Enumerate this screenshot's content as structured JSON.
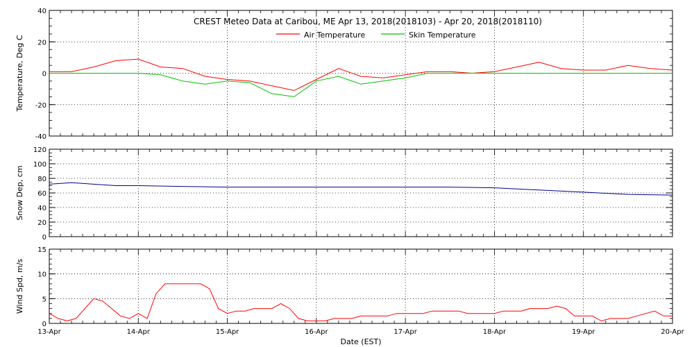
{
  "chart_data": [
    {
      "type": "line",
      "title": "CREST Meteo Data at Caribou, ME   Apr 13, 2018(2018103) - Apr 20, 2018(2018110)",
      "ylabel": "Temperature, Deg C",
      "ylim": [
        -40,
        40
      ],
      "yticks": [
        -40,
        -20,
        0,
        20,
        40
      ],
      "xlim": [
        "13-Apr",
        "20-Apr"
      ],
      "grid": true,
      "legend": "top-center",
      "series": [
        {
          "name": "Air Temperature",
          "color": "#ff0000",
          "x": [
            0,
            0.25,
            0.5,
            0.75,
            1,
            1.25,
            1.5,
            1.75,
            2,
            2.25,
            2.5,
            2.75,
            3,
            3.25,
            3.5,
            3.75,
            4,
            4.25,
            4.5,
            4.75,
            5,
            5.25,
            5.5,
            5.75,
            6,
            6.25,
            6.5,
            6.75,
            7
          ],
          "values": [
            1,
            1,
            4,
            8,
            9,
            4,
            3,
            -2,
            -4,
            -5,
            -8,
            -11,
            -4,
            3,
            -2,
            -3,
            -1,
            1,
            1,
            0,
            1,
            4,
            7,
            3,
            2,
            2,
            5,
            3,
            2
          ]
        },
        {
          "name": "Skin Temperature",
          "color": "#00c000",
          "x": [
            0,
            0.25,
            0.5,
            0.75,
            1,
            1.25,
            1.5,
            1.75,
            2,
            2.25,
            2.5,
            2.75,
            3,
            3.25,
            3.5,
            3.75,
            4,
            4.25,
            4.5,
            4.75,
            5,
            5.25,
            5.5,
            5.75,
            6,
            6.25,
            6.5,
            6.75,
            7
          ],
          "values": [
            0,
            0,
            0,
            0,
            0,
            -1,
            -5,
            -7,
            -5,
            -6,
            -13,
            -15,
            -5,
            -2,
            -7,
            -5,
            -3,
            0,
            0,
            0,
            0,
            0,
            0,
            0,
            0,
            0,
            0,
            0,
            0
          ]
        }
      ]
    },
    {
      "type": "line",
      "ylabel": "Snow Dep, cm",
      "ylim": [
        0,
        120
      ],
      "yticks": [
        0,
        20,
        40,
        60,
        80,
        100,
        120
      ],
      "xlim": [
        "13-Apr",
        "20-Apr"
      ],
      "grid": true,
      "series": [
        {
          "color": "#00008b",
          "x": [
            0,
            0.25,
            0.5,
            0.75,
            1,
            1.5,
            2,
            2.5,
            3,
            3.5,
            4,
            4.5,
            5,
            5.5,
            6,
            6.5,
            7
          ],
          "values": [
            72,
            74,
            72,
            70,
            70,
            69,
            68,
            68,
            68,
            68,
            68,
            68,
            67,
            64,
            61,
            58,
            57
          ]
        }
      ]
    },
    {
      "type": "line",
      "ylabel": "Wind Spd, m/s",
      "xlabel": "Date (EST)",
      "ylim": [
        0,
        15
      ],
      "yticks": [
        0,
        5,
        10,
        15
      ],
      "xlim": [
        "13-Apr",
        "20-Apr"
      ],
      "xticks": [
        "13-Apr",
        "14-Apr",
        "15-Apr",
        "16-Apr",
        "17-Apr",
        "18-Apr",
        "19-Apr",
        "20-Apr"
      ],
      "grid": true,
      "series": [
        {
          "color": "#ff0000",
          "x": [
            0,
            0.1,
            0.2,
            0.3,
            0.4,
            0.5,
            0.6,
            0.7,
            0.8,
            0.9,
            1.0,
            1.1,
            1.2,
            1.3,
            1.4,
            1.5,
            1.6,
            1.7,
            1.8,
            1.9,
            2.0,
            2.1,
            2.2,
            2.3,
            2.4,
            2.5,
            2.6,
            2.7,
            2.8,
            2.9,
            3.0,
            3.1,
            3.2,
            3.3,
            3.4,
            3.5,
            3.6,
            3.7,
            3.8,
            3.9,
            4.0,
            4.1,
            4.2,
            4.3,
            4.4,
            4.5,
            4.6,
            4.7,
            4.8,
            4.9,
            5.0,
            5.1,
            5.2,
            5.3,
            5.4,
            5.5,
            5.6,
            5.7,
            5.8,
            5.9,
            6.0,
            6.1,
            6.2,
            6.3,
            6.4,
            6.5,
            6.6,
            6.7,
            6.8,
            6.9,
            7.0
          ],
          "values": [
            2,
            1,
            0.5,
            1,
            3,
            5,
            4.5,
            3,
            1.5,
            1,
            2,
            1,
            6,
            8,
            8,
            8,
            8,
            8,
            7,
            3,
            2,
            2.5,
            2.5,
            3,
            3,
            3,
            4,
            3,
            1,
            0.5,
            0.5,
            0.5,
            1,
            1,
            1,
            1.5,
            1.5,
            1.5,
            1.5,
            2,
            2,
            2,
            2,
            2.5,
            2.5,
            2.5,
            2.5,
            2,
            2,
            2,
            2,
            2.5,
            2.5,
            2.5,
            3,
            3,
            3,
            3.5,
            3,
            1.5,
            1.5,
            1.5,
            0.5,
            1,
            1,
            1,
            1.5,
            2,
            2.5,
            1.5,
            1.5
          ]
        }
      ]
    }
  ],
  "x_dates": [
    "13-Apr",
    "14-Apr",
    "15-Apr",
    "16-Apr",
    "17-Apr",
    "18-Apr",
    "19-Apr",
    "20-Apr"
  ]
}
